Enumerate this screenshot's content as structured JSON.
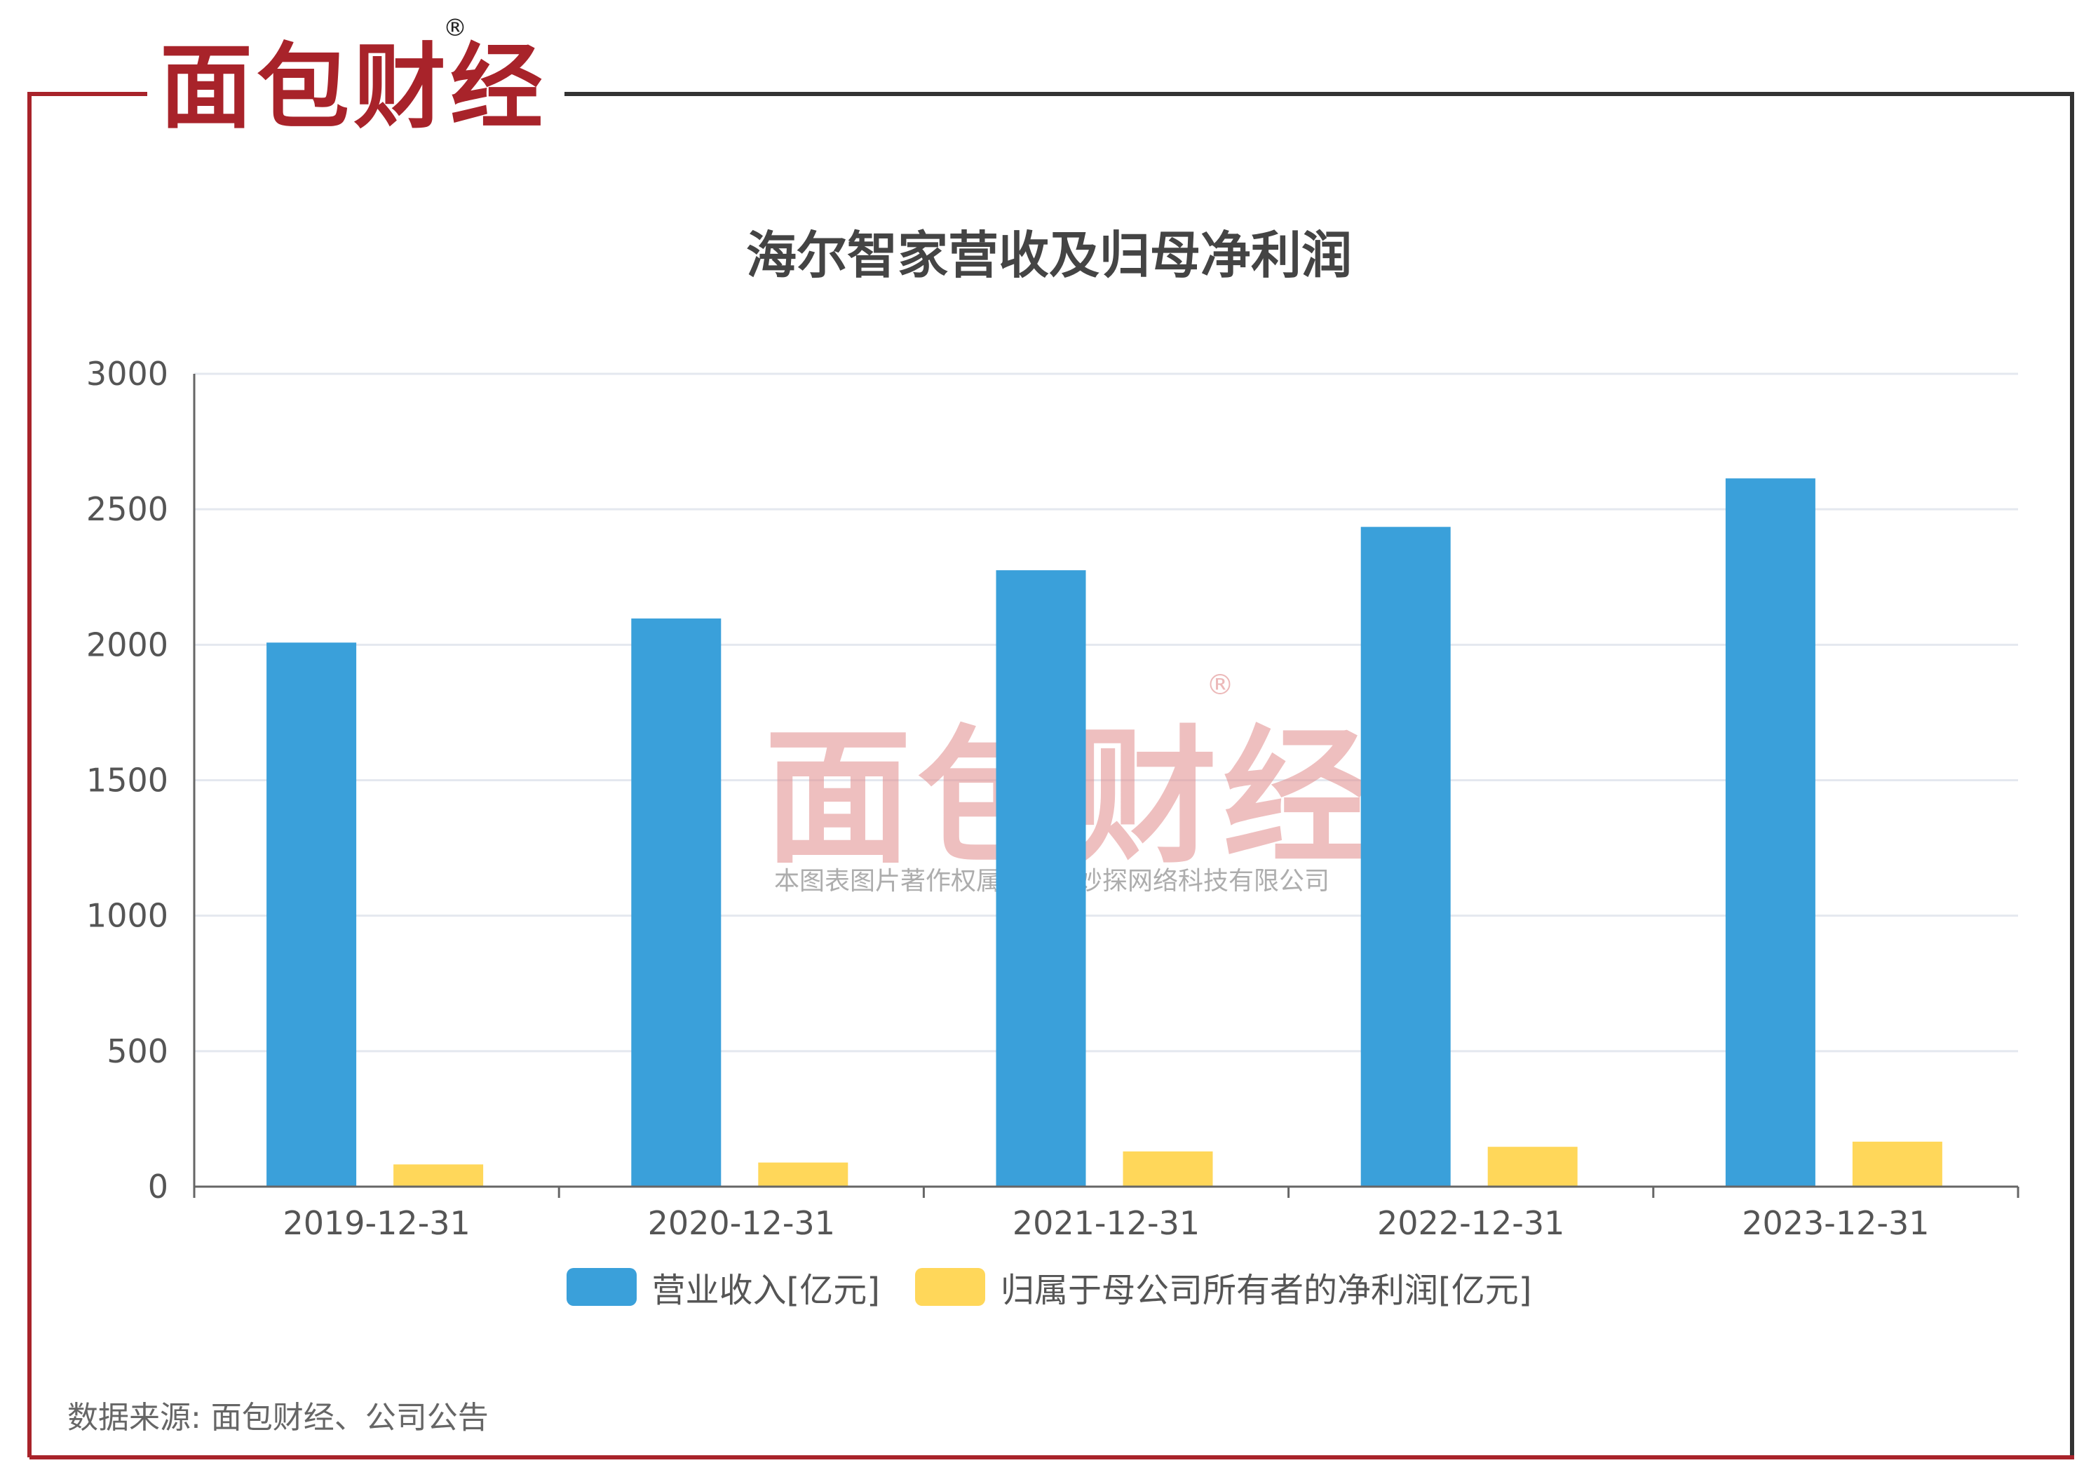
{
  "brand": {
    "logo_text": "面包财经",
    "registered_mark": "®",
    "watermark_text": "面包财经",
    "watermark_caption": "本图表图片著作权属于上海妙探网络科技有限公司"
  },
  "footer": {
    "source": "数据来源: 面包财经、公司公告"
  },
  "colors": {
    "frame_red": "#a8232a",
    "frame_dark": "#333333",
    "revenue": "#3aa0da",
    "profit": "#ffd75a",
    "grid": "#e4e8ef",
    "axis": "#666666",
    "text": "#555555",
    "title": "#444444",
    "logo_red": "#a8232a",
    "logo_dark": "#222222"
  },
  "chart_data": {
    "type": "bar",
    "title": "海尔智家营收及归母净利润",
    "categories": [
      "2019-12-31",
      "2020-12-31",
      "2021-12-31",
      "2022-12-31",
      "2023-12-31"
    ],
    "series": [
      {
        "name": "营业收入[亿元]",
        "color": "#3aa0da",
        "values": [
          2008,
          2097,
          2275,
          2435,
          2614
        ]
      },
      {
        "name": "归属于母公司所有者的净利润[亿元]",
        "color": "#ffd75a",
        "values": [
          82,
          89,
          130,
          147,
          166
        ]
      }
    ],
    "ylim": [
      0,
      3000
    ],
    "yticks": [
      "0",
      "500",
      "1000",
      "1500",
      "2000",
      "2500",
      "3000"
    ],
    "grid": true,
    "legend_position": "bottom-center"
  }
}
